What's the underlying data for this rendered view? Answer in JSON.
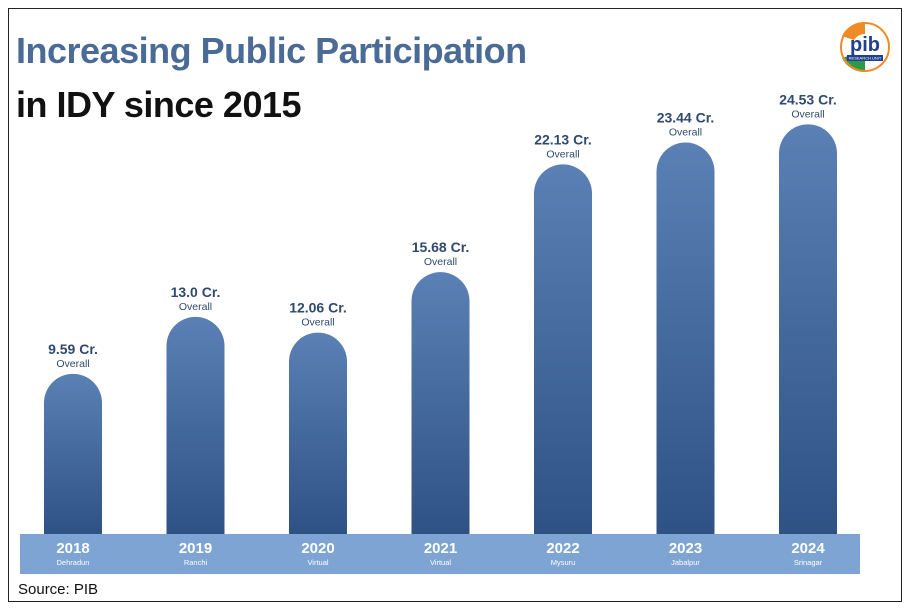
{
  "title_line1": "Increasing Public Participation",
  "title_line2": "in IDY since 2015",
  "source": "Source: PIB",
  "logo": {
    "text": "pib",
    "subtext": "RESEARCH UNIT",
    "icon": "pib-research-unit-logo"
  },
  "colors": {
    "bar_top": "#5a80b5",
    "bar_bottom": "#2f5285",
    "band": "#7ea4d4",
    "title_accent": "#4a6b95",
    "label": "#2f4a6e"
  },
  "chart_data": {
    "type": "bar",
    "title": "Increasing Public Participation in IDY since 2015",
    "categories": [
      "2018",
      "2019",
      "2020",
      "2021",
      "2022",
      "2023",
      "2024"
    ],
    "locations": [
      "Dehradun",
      "Ranchi",
      "Virtual",
      "Virtual",
      "Mysuru",
      "Jabalpur",
      "Srinagar"
    ],
    "values": [
      9.59,
      13.0,
      12.06,
      15.68,
      22.13,
      23.44,
      24.53
    ],
    "value_labels": [
      "9.59 Cr.",
      "13.0 Cr.",
      "12.06 Cr.",
      "15.68 Cr.",
      "22.13 Cr.",
      "23.44 Cr.",
      "24.53 Cr."
    ],
    "sublabel": "Overall",
    "unit": "Cr.",
    "xlabel": "",
    "ylabel": "",
    "grid": false
  }
}
